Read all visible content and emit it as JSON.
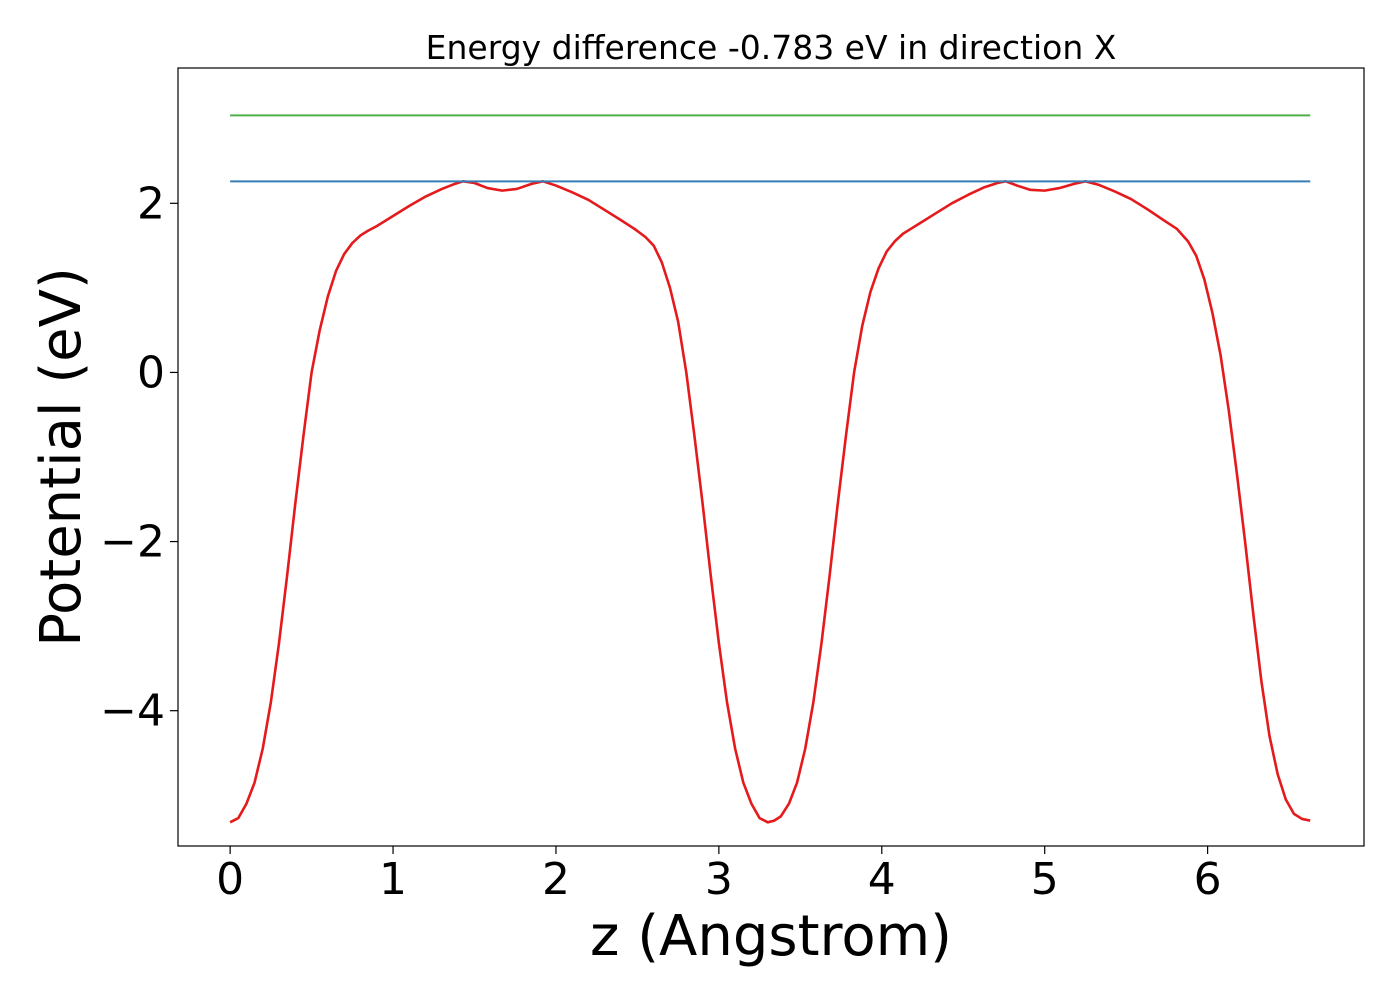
{
  "chart_data": {
    "type": "line",
    "title": "Energy difference -0.783 eV in direction X",
    "xlabel": "z (Angstrom)",
    "ylabel": "Potential (eV)",
    "xlim": [
      -0.32,
      6.96
    ],
    "ylim": [
      -5.6,
      3.6
    ],
    "xticks": [
      0,
      1,
      2,
      3,
      4,
      5,
      6
    ],
    "yticks": [
      -4,
      -2,
      0,
      2
    ],
    "grid": false,
    "legend": "none",
    "series": [
      {
        "color": "#e41a1c",
        "x": [
          0.0,
          0.05,
          0.1,
          0.15,
          0.2,
          0.25,
          0.3,
          0.35,
          0.4,
          0.45,
          0.5,
          0.55,
          0.6,
          0.65,
          0.7,
          0.75,
          0.8,
          0.85,
          0.9,
          1.0,
          1.1,
          1.2,
          1.3,
          1.38,
          1.43,
          1.5,
          1.58,
          1.67,
          1.76,
          1.85,
          1.92,
          2.0,
          2.1,
          2.2,
          2.3,
          2.4,
          2.48,
          2.55,
          2.6,
          2.65,
          2.7,
          2.75,
          2.8,
          2.85,
          2.9,
          2.95,
          3.0,
          3.05,
          3.1,
          3.15,
          3.2,
          3.25,
          3.3,
          3.34,
          3.38,
          3.43,
          3.48,
          3.53,
          3.58,
          3.63,
          3.68,
          3.73,
          3.78,
          3.83,
          3.88,
          3.93,
          3.98,
          4.03,
          4.08,
          4.13,
          4.18,
          4.23,
          4.33,
          4.43,
          4.53,
          4.63,
          4.71,
          4.76,
          4.83,
          4.91,
          5.0,
          5.09,
          5.18,
          5.25,
          5.33,
          5.43,
          5.53,
          5.63,
          5.73,
          5.81,
          5.88,
          5.93,
          5.98,
          6.03,
          6.08,
          6.13,
          6.18,
          6.23,
          6.28,
          6.33,
          6.38,
          6.43,
          6.48,
          6.53,
          6.58,
          6.63
        ],
        "y": [
          -5.32,
          -5.27,
          -5.1,
          -4.85,
          -4.45,
          -3.9,
          -3.2,
          -2.4,
          -1.55,
          -0.75,
          0.0,
          0.5,
          0.9,
          1.2,
          1.4,
          1.53,
          1.62,
          1.68,
          1.73,
          1.85,
          1.97,
          2.08,
          2.17,
          2.23,
          2.26,
          2.24,
          2.18,
          2.15,
          2.17,
          2.23,
          2.26,
          2.21,
          2.13,
          2.04,
          1.92,
          1.8,
          1.7,
          1.6,
          1.5,
          1.3,
          1.0,
          0.6,
          0.0,
          -0.75,
          -1.55,
          -2.4,
          -3.2,
          -3.9,
          -4.45,
          -4.85,
          -5.1,
          -5.27,
          -5.32,
          -5.3,
          -5.25,
          -5.1,
          -4.85,
          -4.45,
          -3.9,
          -3.2,
          -2.4,
          -1.55,
          -0.75,
          0.0,
          0.55,
          0.95,
          1.23,
          1.43,
          1.55,
          1.64,
          1.7,
          1.76,
          1.88,
          2.0,
          2.1,
          2.19,
          2.24,
          2.26,
          2.21,
          2.16,
          2.15,
          2.18,
          2.23,
          2.26,
          2.22,
          2.14,
          2.05,
          1.93,
          1.8,
          1.7,
          1.55,
          1.38,
          1.1,
          0.7,
          0.2,
          -0.45,
          -1.2,
          -2.0,
          -2.85,
          -3.65,
          -4.3,
          -4.75,
          -5.05,
          -5.22,
          -5.28,
          -5.3
        ]
      },
      {
        "color": "#377eb8",
        "x": [
          0.0,
          6.63
        ],
        "y": [
          2.26,
          2.26
        ]
      },
      {
        "color": "#4daf4a",
        "x": [
          0.0,
          6.63
        ],
        "y": [
          3.04,
          3.04
        ]
      }
    ]
  }
}
